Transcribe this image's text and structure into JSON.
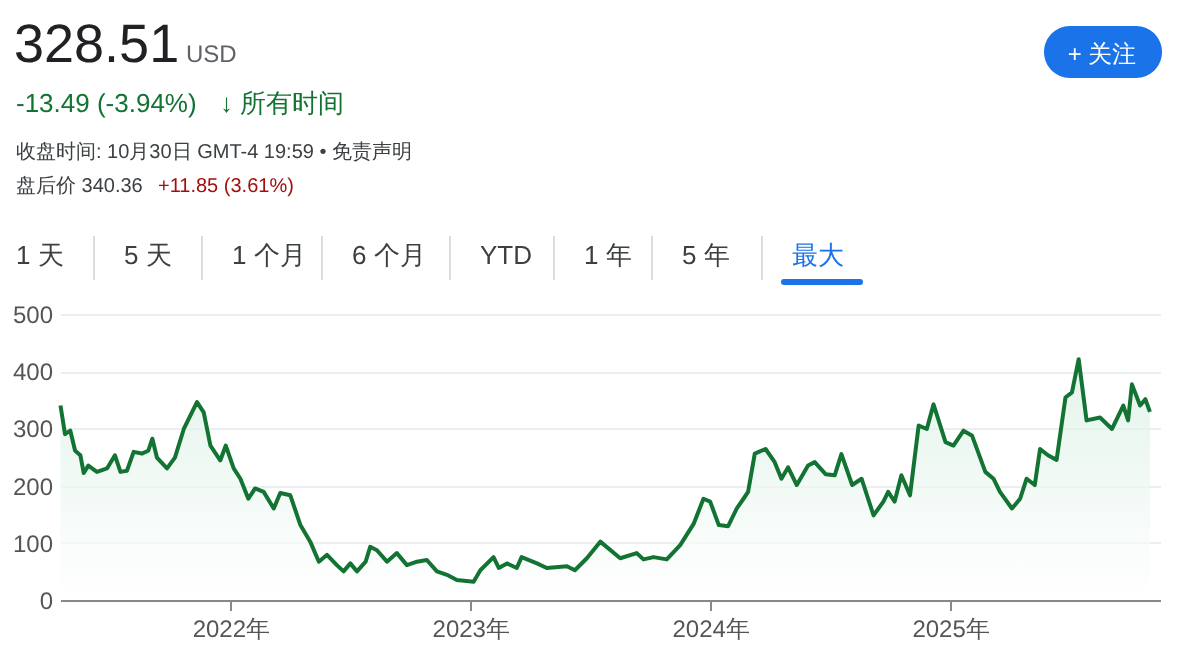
{
  "chart_data": {
    "type": "area",
    "title": "328.51",
    "annotations": [
      "USD",
      "-13.49 (-3.94%)",
      "↓ 所有时间",
      "收盘时间: 10月30日 GMT-4 19:59 • 免责声明",
      "盘后价 340.36",
      "+11.85 (3.61%)",
      "1 天",
      "5 天",
      "1 个月",
      "6 个月",
      "YTD",
      "1 年",
      "5 年",
      "最大",
      "+ 关注"
    ],
    "x": [
      2021.292,
      2021.311,
      2021.333,
      2021.353,
      2021.375,
      2021.389,
      2021.408,
      2021.444,
      2021.486,
      2021.519,
      2021.542,
      2021.569,
      2021.597,
      2021.631,
      2021.658,
      2021.675,
      2021.694,
      2021.736,
      2021.769,
      2021.806,
      2021.861,
      2021.889,
      2021.917,
      2021.958,
      2021.981,
      2022.014,
      2022.042,
      2022.075,
      2022.103,
      2022.139,
      2022.181,
      2022.208,
      2022.25,
      2022.292,
      2022.333,
      2022.369,
      2022.403,
      2022.444,
      2022.472,
      2022.5,
      2022.528,
      2022.564,
      2022.583,
      2022.611,
      2022.653,
      2022.694,
      2022.736,
      2022.778,
      2022.819,
      2022.861,
      2022.903,
      2022.944,
      2023.014,
      2023.042,
      2023.097,
      2023.119,
      2023.153,
      2023.194,
      2023.214,
      2023.278,
      2023.319,
      2023.403,
      2023.436,
      2023.486,
      2023.542,
      2023.625,
      2023.694,
      2023.722,
      2023.764,
      2023.819,
      2023.875,
      2023.931,
      2023.972,
      2024.0,
      2024.036,
      2024.075,
      2024.111,
      2024.139,
      2024.158,
      2024.186,
      2024.231,
      2024.269,
      2024.297,
      2024.325,
      2024.361,
      2024.408,
      2024.436,
      2024.481,
      2024.519,
      2024.547,
      2024.592,
      2024.631,
      2024.681,
      2024.722,
      2024.742,
      2024.769,
      2024.797,
      2024.833,
      2024.869,
      2024.903,
      2024.931,
      2024.981,
      2025.014,
      2025.056,
      2025.092,
      2025.147,
      2025.181,
      2025.208,
      2025.258,
      2025.292,
      2025.319,
      2025.353,
      2025.375,
      2025.408,
      2025.444,
      2025.481,
      2025.508,
      2025.536,
      2025.569,
      2025.625,
      2025.675,
      2025.722,
      2025.742,
      2025.758,
      2025.792,
      2025.814,
      2025.833
    ],
    "series": [
      {
        "color": "#137333",
        "values": [
          340,
          290,
          296,
          261,
          253,
          222,
          235,
          224,
          230,
          253,
          224,
          226,
          259,
          256,
          261,
          282,
          249,
          230,
          249,
          299,
          346,
          328,
          270,
          244,
          270,
          230,
          212,
          177,
          195,
          189,
          160,
          187,
          183,
          131,
          102,
          67,
          79,
          61,
          50,
          64,
          50,
          67,
          93,
          87,
          67,
          82,
          61,
          67,
          70,
          50,
          44,
          35,
          32,
          52,
          75,
          56,
          64,
          56,
          75,
          64,
          56,
          59,
          52,
          73,
          102,
          73,
          82,
          71,
          75,
          71,
          96,
          133,
          177,
          172,
          131,
          129,
          160,
          177,
          189,
          256,
          264,
          241,
          212,
          232,
          201,
          235,
          241,
          220,
          218,
          255,
          201,
          212,
          148,
          172,
          189,
          172,
          218,
          183,
          305,
          299,
          342,
          276,
          270,
          296,
          287,
          224,
          212,
          189,
          160,
          177,
          212,
          201,
          264,
          253,
          245,
          354,
          363,
          421,
          314,
          319,
          299,
          340,
          314,
          377,
          340,
          351,
          329
        ]
      }
    ],
    "xlim": [
      2021.29,
      2025.875
    ],
    "xticks": [
      {
        "value": 2022,
        "label": "2022年"
      },
      {
        "value": 2023,
        "label": "2023年"
      },
      {
        "value": 2024,
        "label": "2024年"
      },
      {
        "value": 2025,
        "label": "2025年"
      }
    ],
    "ylim": [
      0,
      500
    ],
    "yticks": [
      0,
      100,
      200,
      300,
      400,
      500
    ],
    "grid": "y",
    "marker": "none",
    "line_style": "solid"
  }
}
